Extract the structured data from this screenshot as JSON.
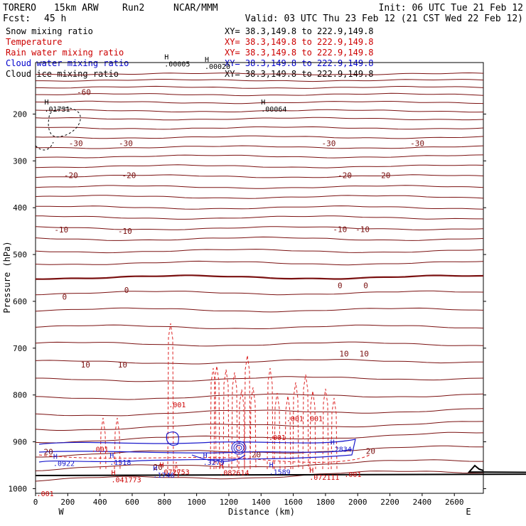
{
  "header": {
    "model": "TORERO",
    "resolution": "15km ARW",
    "run": "Run2",
    "org": "NCAR/MMM",
    "init": "Init: 06 UTC Tue 21 Feb 12",
    "fcst_label": "Fcst:",
    "fcst_hours": "45 h",
    "valid": "Valid: 03 UTC Thu 23 Feb 12 (21 CST Wed 22 Feb 12)"
  },
  "fields": [
    {
      "name": "Snow mixing ratio",
      "xy": "XY=  38.3,149.8 to 222.9,149.8",
      "color": "#000000"
    },
    {
      "name": "Temperature",
      "xy": "XY=  38.3,149.8 to 222.9,149.8",
      "color": "#cc0000"
    },
    {
      "name": "Rain water mixing ratio",
      "xy": "XY=  38.3,149.8 to 222.9,149.8",
      "color": "#cc0000"
    },
    {
      "name": "Cloud water mixing ratio",
      "xy": "XY=  38.3,149.8 to 222.9,149.8",
      "color": "#0000cc"
    },
    {
      "name": "Cloud ice mixing ratio",
      "xy": "XY=  38.3,149.8 to 222.9,149.8",
      "color": "#000000"
    }
  ],
  "chart_data": {
    "type": "cross-section",
    "xlabel": "Distance (km)",
    "ylabel": "Pressure (hPa)",
    "xlim": [
      0,
      2780
    ],
    "ylim": [
      1010,
      90
    ],
    "x_ticks": [
      0,
      200,
      400,
      600,
      800,
      1000,
      1200,
      1400,
      1600,
      1800,
      2000,
      2200,
      2400,
      2600
    ],
    "y_ticks": [
      200,
      300,
      400,
      500,
      600,
      700,
      800,
      900,
      1000
    ],
    "endpoints": {
      "left": "W",
      "right": "E"
    },
    "extrema_top": [
      {
        "x": 800,
        "y": 98,
        "label": ".00005"
      },
      {
        "x": 1050,
        "y": 104,
        "label": ".00020"
      },
      {
        "x": 1400,
        "y": 195,
        "label": ".00064"
      },
      {
        "x": 55,
        "y": 195,
        "label": ".01731"
      }
    ],
    "temperature_labels": [
      {
        "x": 300,
        "y": 153,
        "label": "-60"
      },
      {
        "x": 250,
        "y": 262,
        "label": "-30"
      },
      {
        "x": 560,
        "y": 262,
        "label": "-30"
      },
      {
        "x": 1820,
        "y": 262,
        "label": "-30"
      },
      {
        "x": 2370,
        "y": 262,
        "label": "-30"
      },
      {
        "x": 220,
        "y": 331,
        "label": "-20"
      },
      {
        "x": 580,
        "y": 331,
        "label": "-20"
      },
      {
        "x": 1920,
        "y": 331,
        "label": "-20"
      },
      {
        "x": 2160,
        "y": 331,
        "label": "-20"
      },
      {
        "x": 160,
        "y": 447,
        "label": "-10"
      },
      {
        "x": 555,
        "y": 450,
        "label": "-10"
      },
      {
        "x": 1890,
        "y": 446,
        "label": "-10"
      },
      {
        "x": 2030,
        "y": 446,
        "label": "-10"
      },
      {
        "x": 180,
        "y": 590,
        "label": "0"
      },
      {
        "x": 565,
        "y": 576,
        "label": "0"
      },
      {
        "x": 1890,
        "y": 566,
        "label": "0"
      },
      {
        "x": 2050,
        "y": 566,
        "label": "0"
      },
      {
        "x": 310,
        "y": 735,
        "label": "10"
      },
      {
        "x": 540,
        "y": 735,
        "label": "10"
      },
      {
        "x": 1915,
        "y": 712,
        "label": "10"
      },
      {
        "x": 2040,
        "y": 712,
        "label": "10"
      },
      {
        "x": 2080,
        "y": 920,
        "label": "20"
      },
      {
        "x": 80,
        "y": 921,
        "label": "20"
      },
      {
        "x": 760,
        "y": 954,
        "label": "20"
      },
      {
        "x": 1370,
        "y": 927,
        "label": "20"
      }
    ],
    "rain_labels": [
      {
        "x": 880,
        "y": 820,
        "label": ".001"
      },
      {
        "x": 1500,
        "y": 890,
        "label": ".001"
      },
      {
        "x": 1610,
        "y": 850,
        "label": ".001"
      },
      {
        "x": 1730,
        "y": 850,
        "label": ".001"
      },
      {
        "x": 400,
        "y": 915,
        "label": ".001"
      },
      {
        "x": 1970,
        "y": 969,
        "label": ".001"
      },
      {
        "x": 60,
        "y": 1010,
        "label": ".001"
      }
    ],
    "rain_extrema": [
      {
        "x": 470,
        "y": 985,
        "label": "H",
        "value": ".041773"
      },
      {
        "x": 770,
        "y": 968,
        "label": "H",
        "value": ".072753"
      },
      {
        "x": 1700,
        "y": 980,
        "label": "H",
        "value": ".072111"
      },
      {
        "x": 1140,
        "y": 970,
        "label": "H",
        "value": ".082614"
      }
    ],
    "cloud_extrema": [
      {
        "x": 110,
        "y": 950,
        "label": "H",
        "value": ".0922"
      },
      {
        "x": 460,
        "y": 948,
        "label": "H",
        "value": ".1518"
      },
      {
        "x": 730,
        "y": 975,
        "label": "H",
        "value": ".1746"
      },
      {
        "x": 1040,
        "y": 948,
        "label": "H",
        "value": ".3279"
      },
      {
        "x": 1450,
        "y": 968,
        "label": "H",
        "value": ".1589"
      },
      {
        "x": 1830,
        "y": 920,
        "label": "H",
        "value": ".2834"
      }
    ]
  }
}
